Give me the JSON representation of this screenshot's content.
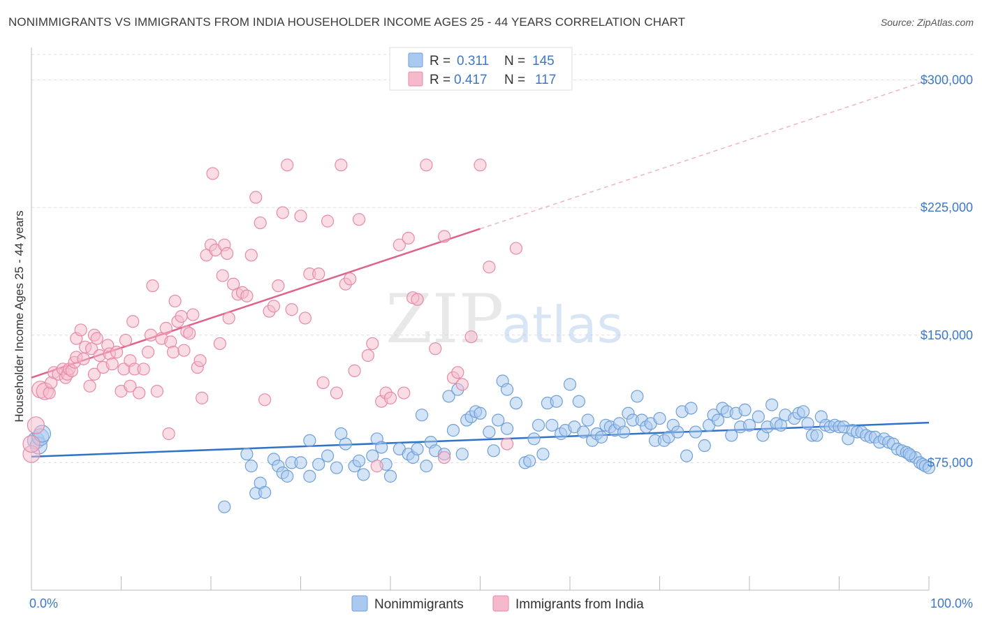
{
  "header": {
    "title": "NONIMMIGRANTS VS IMMIGRANTS FROM INDIA HOUSEHOLDER INCOME AGES 25 - 44 YEARS CORRELATION CHART",
    "source": "Source: ZipAtlas.com"
  },
  "watermark": {
    "zip": "ZIP",
    "atlas": "atlas"
  },
  "legend": {
    "rows": [
      {
        "r_label": "R =",
        "r_value": "0.311",
        "n_label": "N =",
        "n_value": "145",
        "color": "#a9c9f0",
        "stroke": "#6f9fd8"
      },
      {
        "r_label": "R =",
        "r_value": "0.417",
        "n_label": "N =",
        "n_value": "117",
        "color": "#f6b9cc",
        "stroke": "#e68aa8"
      }
    ]
  },
  "bottom_legend": {
    "items": [
      {
        "label": "Nonimmigrants",
        "color": "#a9c9f0",
        "stroke": "#6f9fd8"
      },
      {
        "label": "Immigrants from India",
        "color": "#f6b9cc",
        "stroke": "#e68aa8"
      }
    ]
  },
  "chart_data": {
    "type": "scatter",
    "title": "NONIMMIGRANTS VS IMMIGRANTS FROM INDIA HOUSEHOLDER INCOME AGES 25 - 44 YEARS CORRELATION CHART",
    "xlabel": "",
    "ylabel": "Householder Income Ages 25 - 44 years",
    "xlim": [
      0,
      100
    ],
    "ylim": [
      0,
      315000
    ],
    "x_tick_labels": [
      "0.0%",
      "100.0%"
    ],
    "y_ticks": [
      75000,
      150000,
      225000,
      300000
    ],
    "y_tick_labels": [
      "$75,000",
      "$150,000",
      "$225,000",
      "$300,000"
    ],
    "grid": true,
    "legend_position": "top-center",
    "series": [
      {
        "name": "Nonimmigrants",
        "color": "#6f9fd8",
        "fill": "#a9c9f0",
        "trend": {
          "x": [
            0,
            100
          ],
          "y": [
            78500,
            98500
          ],
          "style": "solid",
          "color": "#2f73c8"
        },
        "points": [
          [
            0.5,
            88000
          ],
          [
            0.8,
            85000
          ],
          [
            1.0,
            90000
          ],
          [
            1.2,
            92000
          ],
          [
            21.5,
            49000
          ],
          [
            24,
            80000
          ],
          [
            24.5,
            73000
          ],
          [
            25,
            57000
          ],
          [
            25.5,
            63000
          ],
          [
            26,
            57500
          ],
          [
            27,
            77000
          ],
          [
            27.5,
            73000
          ],
          [
            28,
            69000
          ],
          [
            28.5,
            67000
          ],
          [
            29,
            75000
          ],
          [
            30,
            75000
          ],
          [
            31,
            67000
          ],
          [
            31,
            88000
          ],
          [
            32,
            74000
          ],
          [
            33,
            79000
          ],
          [
            34,
            72000
          ],
          [
            34.5,
            92000
          ],
          [
            35,
            86000
          ],
          [
            36,
            73000
          ],
          [
            36.5,
            76000
          ],
          [
            37,
            68000
          ],
          [
            38,
            79000
          ],
          [
            38.5,
            89000
          ],
          [
            39,
            84000
          ],
          [
            39.5,
            74000
          ],
          [
            40,
            67000
          ],
          [
            41,
            83000
          ],
          [
            42,
            80000
          ],
          [
            42.5,
            78000
          ],
          [
            43,
            83000
          ],
          [
            43.5,
            103000
          ],
          [
            44,
            73000
          ],
          [
            44.5,
            87000
          ],
          [
            45,
            82000
          ],
          [
            46,
            80000
          ],
          [
            46.5,
            114000
          ],
          [
            47,
            94000
          ],
          [
            47.5,
            118000
          ],
          [
            48,
            80000
          ],
          [
            48.5,
            100000
          ],
          [
            49,
            102000
          ],
          [
            49.5,
            105000
          ],
          [
            50,
            104000
          ],
          [
            51,
            93000
          ],
          [
            51.5,
            82000
          ],
          [
            52,
            100000
          ],
          [
            52.5,
            123000
          ],
          [
            53,
            118000
          ],
          [
            53,
            95000
          ],
          [
            54,
            110000
          ],
          [
            55,
            75000
          ],
          [
            55.5,
            76000
          ],
          [
            56,
            89000
          ],
          [
            56.5,
            97000
          ],
          [
            57,
            80000
          ],
          [
            57.5,
            110000
          ],
          [
            58,
            97000
          ],
          [
            58.5,
            111000
          ],
          [
            59,
            92000
          ],
          [
            59.5,
            94000
          ],
          [
            60,
            121000
          ],
          [
            60.5,
            96000
          ],
          [
            61,
            111000
          ],
          [
            61.5,
            93000
          ],
          [
            62,
            100000
          ],
          [
            62.5,
            88000
          ],
          [
            63,
            92000
          ],
          [
            63.5,
            90000
          ],
          [
            64,
            97000
          ],
          [
            64.5,
            96000
          ],
          [
            65,
            94000
          ],
          [
            65.5,
            98000
          ],
          [
            66,
            93000
          ],
          [
            66.5,
            104000
          ],
          [
            67,
            100000
          ],
          [
            67.5,
            114000
          ],
          [
            68,
            100000
          ],
          [
            68.5,
            96000
          ],
          [
            69,
            98000
          ],
          [
            69.5,
            88000
          ],
          [
            70,
            101000
          ],
          [
            70.5,
            88000
          ],
          [
            71,
            90000
          ],
          [
            71.5,
            97000
          ],
          [
            72,
            93000
          ],
          [
            72.5,
            105000
          ],
          [
            73,
            79000
          ],
          [
            73.5,
            107000
          ],
          [
            74,
            93000
          ],
          [
            75,
            85000
          ],
          [
            75.5,
            97000
          ],
          [
            76,
            103000
          ],
          [
            76.5,
            100000
          ],
          [
            77,
            107000
          ],
          [
            77.5,
            105000
          ],
          [
            78,
            91000
          ],
          [
            78.5,
            104000
          ],
          [
            79,
            96000
          ],
          [
            79.5,
            106000
          ],
          [
            80,
            97000
          ],
          [
            81,
            102000
          ],
          [
            81.5,
            91000
          ],
          [
            82,
            96000
          ],
          [
            82.5,
            109000
          ],
          [
            83,
            98000
          ],
          [
            83.5,
            97000
          ],
          [
            84,
            103000
          ],
          [
            85,
            101000
          ],
          [
            85.5,
            104000
          ],
          [
            86,
            105000
          ],
          [
            86.5,
            98000
          ],
          [
            87,
            91000
          ],
          [
            87.5,
            91000
          ],
          [
            88,
            102000
          ],
          [
            88.5,
            97000
          ],
          [
            89,
            96000
          ],
          [
            89.5,
            97000
          ],
          [
            90,
            96000
          ],
          [
            90.5,
            96000
          ],
          [
            91,
            89000
          ],
          [
            91.5,
            94000
          ],
          [
            92,
            93000
          ],
          [
            92.5,
            93000
          ],
          [
            93,
            91000
          ],
          [
            93.5,
            90000
          ],
          [
            94,
            90000
          ],
          [
            94.5,
            87000
          ],
          [
            95,
            89000
          ],
          [
            95.5,
            87000
          ],
          [
            96,
            86000
          ],
          [
            96.5,
            83000
          ],
          [
            97,
            82000
          ],
          [
            97.5,
            81000
          ],
          [
            98,
            79000
          ],
          [
            98.5,
            78000
          ],
          [
            99,
            75000
          ],
          [
            99.3,
            74000
          ],
          [
            99.6,
            73000
          ],
          [
            100,
            72000
          ],
          [
            97.8,
            80000
          ]
        ]
      },
      {
        "name": "Immigrants from India",
        "color": "#e68aa8",
        "fill": "#f6b9cc",
        "trend": {
          "x": [
            0,
            50
          ],
          "y": [
            125000,
            212500
          ],
          "style": "solid",
          "color": "#e0618e",
          "extension": {
            "x": [
              50,
              100
            ],
            "y": [
              212500,
              300000
            ],
            "style": "dashed"
          }
        },
        "points": [
          [
            0.0,
            80000
          ],
          [
            0.0,
            86000
          ],
          [
            0.5,
            97000
          ],
          [
            1.0,
            118000
          ],
          [
            1.5,
            117000
          ],
          [
            2.0,
            116000
          ],
          [
            2.2,
            122000
          ],
          [
            2.5,
            128000
          ],
          [
            3.0,
            127000
          ],
          [
            3.5,
            130000
          ],
          [
            3.8,
            125000
          ],
          [
            4.0,
            127000
          ],
          [
            4.2,
            130000
          ],
          [
            4.5,
            129000
          ],
          [
            4.8,
            134000
          ],
          [
            5.0,
            137000
          ],
          [
            5.0,
            148000
          ],
          [
            5.5,
            153000
          ],
          [
            5.8,
            136000
          ],
          [
            6.0,
            143000
          ],
          [
            6.5,
            120000
          ],
          [
            6.7,
            142000
          ],
          [
            7.0,
            150000
          ],
          [
            7.0,
            127000
          ],
          [
            7.3,
            148000
          ],
          [
            7.6,
            138000
          ],
          [
            8.0,
            131000
          ],
          [
            8.5,
            144000
          ],
          [
            8.7,
            139000
          ],
          [
            9.0,
            133000
          ],
          [
            9.5,
            140000
          ],
          [
            10.0,
            117000
          ],
          [
            10.3,
            130000
          ],
          [
            10.5,
            147000
          ],
          [
            11.0,
            120000
          ],
          [
            11.0,
            135000
          ],
          [
            11.3,
            158000
          ],
          [
            11.5,
            130000
          ],
          [
            12,
            116000
          ],
          [
            12.5,
            130000
          ],
          [
            13,
            140000
          ],
          [
            13.3,
            150000
          ],
          [
            13.5,
            179000
          ],
          [
            14,
            117000
          ],
          [
            14.5,
            148000
          ],
          [
            15,
            154000
          ],
          [
            15.5,
            146000
          ],
          [
            15.8,
            140000
          ],
          [
            16,
            170000
          ],
          [
            16.3,
            158000
          ],
          [
            16.7,
            161000
          ],
          [
            17,
            141000
          ],
          [
            17.3,
            152000
          ],
          [
            17.6,
            151000
          ],
          [
            18,
            162000
          ],
          [
            18.5,
            131000
          ],
          [
            18.8,
            135000
          ],
          [
            19,
            113000
          ],
          [
            19.5,
            197000
          ],
          [
            20,
            203000
          ],
          [
            20.2,
            245000
          ],
          [
            20.5,
            200000
          ],
          [
            21,
            145000
          ],
          [
            21.3,
            185000
          ],
          [
            21.5,
            203000
          ],
          [
            21.8,
            198000
          ],
          [
            22,
            160000
          ],
          [
            22.5,
            180000
          ],
          [
            23,
            174000
          ],
          [
            23.5,
            175000
          ],
          [
            24,
            173000
          ],
          [
            24.5,
            197000
          ],
          [
            25,
            231000
          ],
          [
            25.5,
            216000
          ],
          [
            26,
            112000
          ],
          [
            26.5,
            164000
          ],
          [
            27,
            167000
          ],
          [
            27.5,
            179000
          ],
          [
            28,
            222000
          ],
          [
            28.5,
            250000
          ],
          [
            29,
            165000
          ],
          [
            30,
            220000
          ],
          [
            30.5,
            160000
          ],
          [
            31,
            186000
          ],
          [
            32,
            186000
          ],
          [
            32.5,
            122000
          ],
          [
            33,
            217000
          ],
          [
            34,
            116000
          ],
          [
            34.5,
            250000
          ],
          [
            35,
            180000
          ],
          [
            35.5,
            183000
          ],
          [
            36,
            129000
          ],
          [
            36.5,
            218000
          ],
          [
            37.5,
            138000
          ],
          [
            38,
            145000
          ],
          [
            38.5,
            73000
          ],
          [
            39,
            111000
          ],
          [
            39.5,
            116000
          ],
          [
            40,
            113000
          ],
          [
            41,
            203000
          ],
          [
            41.5,
            116000
          ],
          [
            42,
            207000
          ],
          [
            42.5,
            172000
          ],
          [
            43,
            171000
          ],
          [
            44,
            250000
          ],
          [
            45,
            142000
          ],
          [
            46,
            208000
          ],
          [
            47,
            125000
          ],
          [
            47.5,
            128000
          ],
          [
            48,
            121000
          ],
          [
            49,
            149000
          ],
          [
            50,
            250000
          ],
          [
            51,
            190000
          ],
          [
            53,
            86000
          ],
          [
            54,
            201000
          ],
          [
            46,
            78000
          ],
          [
            15.3,
            92000
          ]
        ]
      }
    ]
  }
}
